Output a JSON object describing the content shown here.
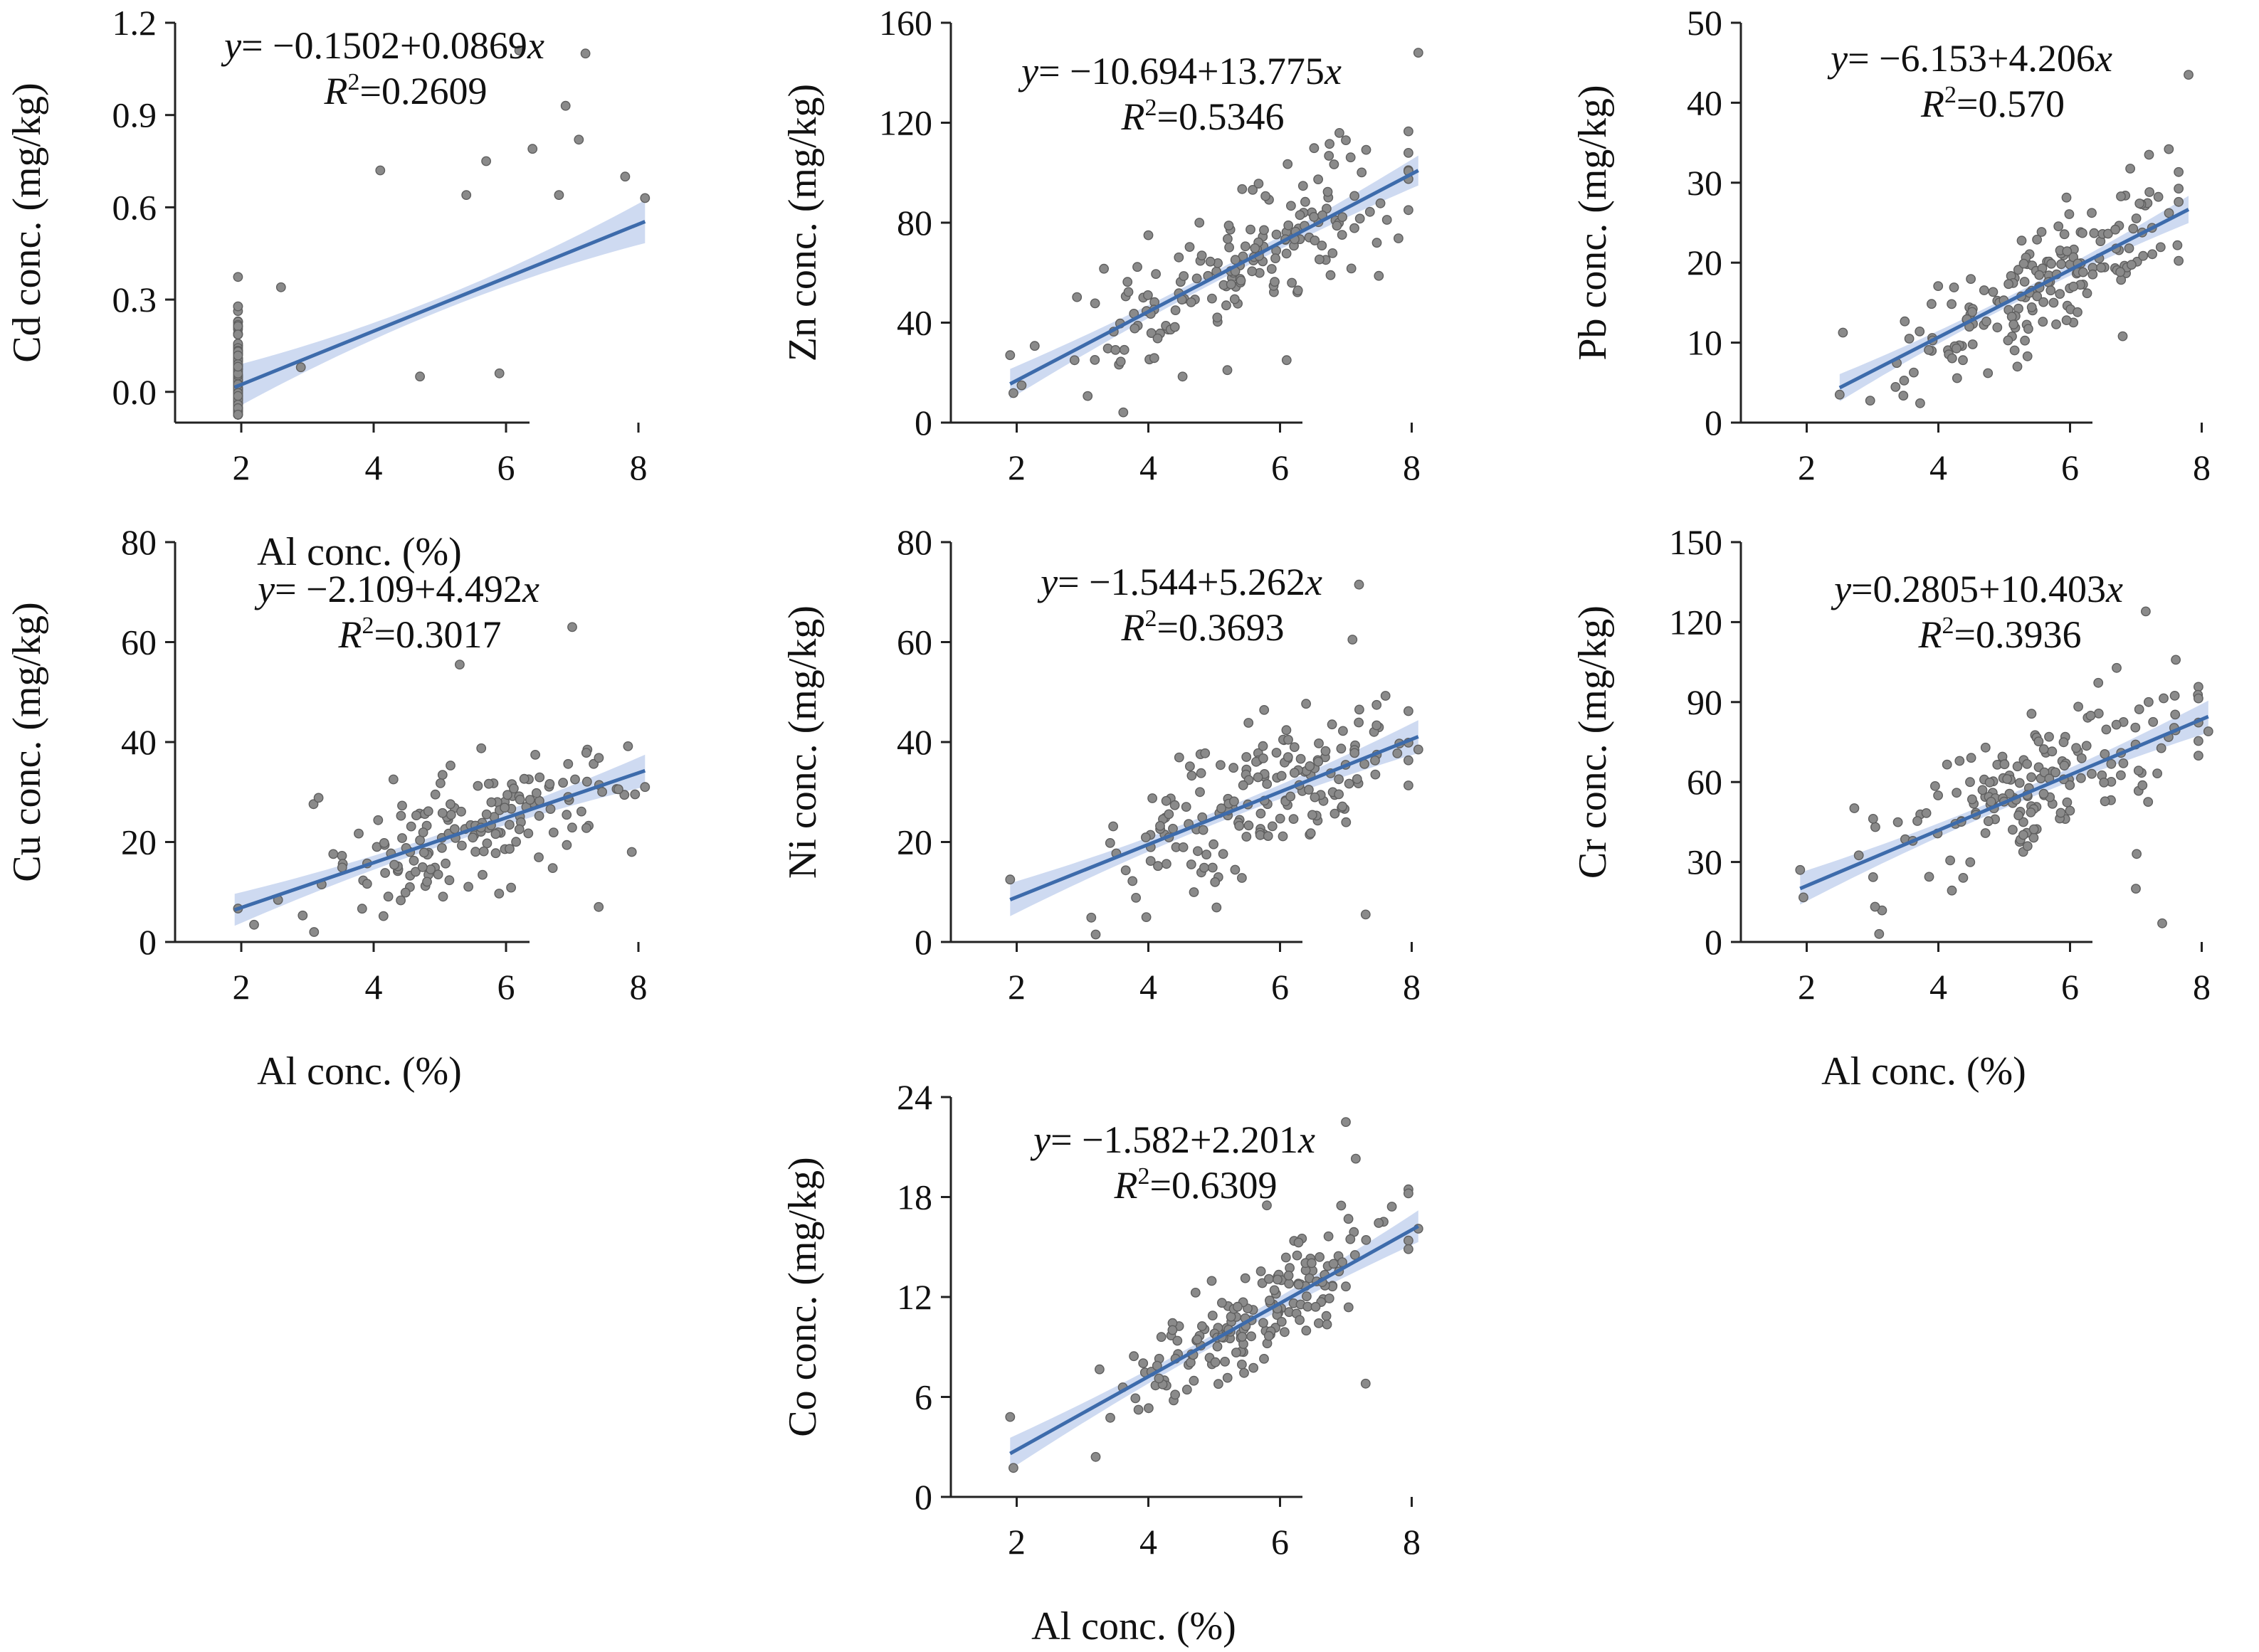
{
  "figure": {
    "background": "#ffffff",
    "point_color": "#8a8a8a",
    "point_edge_color": "#5f5f5f",
    "line_color": "#3d6bab",
    "band_color": "#c5d3ee"
  },
  "chart_data": [
    {
      "id": "cd",
      "type": "scatter",
      "xlabel": "Al conc. (%)",
      "show_xlabel": true,
      "ylabel": "Cd conc. (mg/kg)",
      "xlim": [
        1.0,
        9.0
      ],
      "ylim": [
        -0.1,
        1.2
      ],
      "xticks": [
        2,
        4,
        6,
        8
      ],
      "yticks": [
        0.0,
        0.3,
        0.6,
        0.9,
        1.2
      ],
      "ytick_labels": [
        "0.0",
        "0.3",
        "0.6",
        "0.9",
        "1.2"
      ],
      "equation": {
        "y_label": "y",
        "eq_sign": "=",
        "rhs": " −0.1502+0.0869",
        "x_var": "x",
        "r2_label": "R",
        "r2_power": "2",
        "r2_value": "=0.2609"
      },
      "fit": {
        "intercept": -0.1502,
        "slope": 0.0869,
        "x_range": [
          1.9,
          8.1
        ],
        "band_halfwidth_ends": 0.07,
        "band_halfwidth_mid": 0.022
      },
      "seed": 11,
      "n_points": 170,
      "center": 0.31,
      "spread": 0.31,
      "resid_sd": 0.1,
      "resid_skew": 0.1,
      "outliers": [
        [
          2.6,
          0.34
        ],
        [
          4.1,
          0.72
        ],
        [
          6.2,
          1.11
        ],
        [
          7.2,
          1.1
        ],
        [
          6.9,
          0.93
        ],
        [
          7.1,
          0.82
        ],
        [
          6.4,
          0.79
        ],
        [
          5.7,
          0.75
        ],
        [
          6.8,
          0.64
        ],
        [
          7.8,
          0.7
        ],
        [
          5.4,
          0.64
        ],
        [
          8.1,
          0.63
        ],
        [
          4.7,
          0.05
        ],
        [
          5.9,
          0.06
        ],
        [
          2.9,
          0.08
        ]
      ]
    },
    {
      "id": "zn",
      "type": "scatter",
      "xlabel": "Al conc. (%)",
      "show_xlabel": false,
      "ylabel": "Zn conc. (mg/kg)",
      "xlim": [
        1.0,
        9.0
      ],
      "ylim": [
        0,
        160
      ],
      "xticks": [
        2,
        4,
        6,
        8
      ],
      "yticks": [
        0,
        40,
        80,
        120,
        160
      ],
      "ytick_labels": [
        "0",
        "40",
        "80",
        "120",
        "160"
      ],
      "equation": {
        "y_label": "y",
        "eq_sign": "=",
        "rhs": " −10.694+13.775",
        "x_var": "x",
        "r2_label": "R",
        "r2_power": "2",
        "r2_value": "=0.5346"
      },
      "fit": {
        "intercept": -10.694,
        "slope": 13.775,
        "x_range": [
          1.9,
          8.1
        ],
        "band_halfwidth_ends": 6.0,
        "band_halfwidth_mid": 2.2
      },
      "seed": 22,
      "n_points": 175,
      "center": 5.5,
      "spread": 1.25,
      "resid_sd": 12.5,
      "resid_skew": 0.0,
      "outliers": [
        [
          8.1,
          148
        ],
        [
          1.9,
          27
        ],
        [
          7.0,
          113
        ],
        [
          4.0,
          75
        ],
        [
          5.2,
          21
        ],
        [
          6.1,
          25
        ]
      ]
    },
    {
      "id": "pb",
      "type": "scatter",
      "xlabel": "Al conc. (%)",
      "show_xlabel": false,
      "ylabel": "Pb  conc. (mg/kg)",
      "xlim": [
        1.0,
        9.0
      ],
      "ylim": [
        0,
        50
      ],
      "xticks": [
        2,
        4,
        6,
        8
      ],
      "yticks": [
        0,
        10,
        20,
        30,
        40,
        50
      ],
      "ytick_labels": [
        "0",
        "10",
        "20",
        "30",
        "40",
        "50"
      ],
      "equation": {
        "y_label": "y",
        "eq_sign": "=",
        "rhs": " −6.153+4.206",
        "x_var": "x",
        "r2_label": "R",
        "r2_power": "2",
        "r2_value": "=0.570"
      },
      "fit": {
        "intercept": -6.153,
        "slope": 4.206,
        "x_range": [
          2.5,
          7.8
        ],
        "band_halfwidth_ends": 1.7,
        "band_halfwidth_mid": 0.6
      },
      "seed": 33,
      "n_points": 175,
      "center": 5.6,
      "spread": 1.1,
      "resid_sd": 3.4,
      "resid_skew": 0.0,
      "outliers": [
        [
          7.8,
          43.5
        ],
        [
          2.5,
          3.5
        ],
        [
          7.5,
          34.2
        ],
        [
          7.2,
          33.5
        ],
        [
          6.8,
          10.8
        ],
        [
          5.2,
          7.0
        ]
      ]
    },
    {
      "id": "cu",
      "type": "scatter",
      "xlabel": "Al conc. (%)",
      "show_xlabel": true,
      "ylabel": "Cu conc. (mg/kg)",
      "xlim": [
        1.0,
        9.0
      ],
      "ylim": [
        0,
        80
      ],
      "xticks": [
        2,
        4,
        6,
        8
      ],
      "yticks": [
        0,
        20,
        40,
        60,
        80
      ],
      "ytick_labels": [
        "0",
        "20",
        "40",
        "60",
        "80"
      ],
      "equation": {
        "y_label": "y",
        "eq_sign": "=",
        "rhs": " −2.109+4.492",
        "x_var": "x",
        "r2_label": "R",
        "r2_power": "2",
        "r2_value": "=0.3017"
      },
      "fit": {
        "intercept": -2.109,
        "slope": 4.492,
        "x_range": [
          1.9,
          8.1
        ],
        "band_halfwidth_ends": 3.2,
        "band_halfwidth_mid": 1.2
      },
      "seed": 44,
      "n_points": 165,
      "center": 5.5,
      "spread": 1.3,
      "resid_sd": 6.5,
      "resid_skew": 0.0,
      "outliers": [
        [
          5.3,
          55.5
        ],
        [
          7.0,
          63
        ],
        [
          8.1,
          31
        ],
        [
          3.1,
          2
        ],
        [
          7.9,
          18
        ],
        [
          7.4,
          7
        ]
      ]
    },
    {
      "id": "ni",
      "type": "scatter",
      "xlabel": "Al conc. (%)",
      "show_xlabel": false,
      "ylabel": "Ni conc. (mg/kg)",
      "xlim": [
        1.0,
        9.0
      ],
      "ylim": [
        0,
        80
      ],
      "xticks": [
        2,
        4,
        6,
        8
      ],
      "yticks": [
        0,
        20,
        40,
        60,
        80
      ],
      "ytick_labels": [
        "0",
        "20",
        "40",
        "60",
        "80"
      ],
      "equation": {
        "y_label": "y",
        "eq_sign": "=",
        "rhs": " −1.544+5.262",
        "x_var": "x",
        "r2_label": "R",
        "r2_power": "2",
        "r2_value": "=0.3693"
      },
      "fit": {
        "intercept": -1.544,
        "slope": 5.262,
        "x_range": [
          1.9,
          8.1
        ],
        "band_halfwidth_ends": 3.3,
        "band_halfwidth_mid": 1.2
      },
      "seed": 55,
      "n_points": 175,
      "center": 5.6,
      "spread": 1.2,
      "resid_sd": 6.8,
      "resid_skew": 0.0,
      "outliers": [
        [
          7.2,
          71.5
        ],
        [
          7.1,
          60.5
        ],
        [
          7.3,
          5.5
        ],
        [
          3.2,
          1.5
        ],
        [
          1.9,
          12.5
        ],
        [
          8.1,
          38.5
        ]
      ]
    },
    {
      "id": "cr",
      "type": "scatter",
      "xlabel": "Al conc. (%)",
      "show_xlabel": true,
      "ylabel": "Cr  conc. (mg/kg)",
      "xlim": [
        1.0,
        9.0
      ],
      "ylim": [
        0,
        150
      ],
      "xticks": [
        2,
        4,
        6,
        8
      ],
      "yticks": [
        0,
        30,
        60,
        90,
        120,
        150
      ],
      "ytick_labels": [
        "0",
        "30",
        "60",
        "90",
        "120",
        "150"
      ],
      "equation": {
        "y_label": "y",
        "eq_sign": "=",
        "rhs": "0.2805+10.403",
        "x_var": "x",
        "r2_label": "R",
        "r2_power": "2",
        "r2_value": "=0.3936"
      },
      "fit": {
        "intercept": 0.2805,
        "slope": 10.403,
        "x_range": [
          1.9,
          8.1
        ],
        "band_halfwidth_ends": 6.0,
        "band_halfwidth_mid": 2.2
      },
      "seed": 66,
      "n_points": 175,
      "center": 5.6,
      "spread": 1.2,
      "resid_sd": 12.5,
      "resid_skew": 0.0,
      "outliers": [
        [
          7.15,
          124
        ],
        [
          3.1,
          3
        ],
        [
          7.4,
          7
        ],
        [
          1.9,
          27
        ],
        [
          8.1,
          79
        ],
        [
          7.0,
          20
        ]
      ]
    },
    {
      "id": "co",
      "type": "scatter",
      "xlabel": "Al conc. (%)",
      "show_xlabel": true,
      "ylabel": "Co conc. (mg/kg)",
      "xlim": [
        1.0,
        9.0
      ],
      "ylim": [
        0,
        24
      ],
      "xticks": [
        2,
        4,
        6,
        8
      ],
      "yticks": [
        0,
        6,
        12,
        18,
        24
      ],
      "ytick_labels": [
        "0",
        "6",
        "12",
        "18",
        "24"
      ],
      "equation": {
        "y_label": "y",
        "eq_sign": "=",
        "rhs": " −1.582+2.201",
        "x_var": "x",
        "r2_label": "R",
        "r2_power": "2",
        "r2_value": "=0.6309"
      },
      "fit": {
        "intercept": -1.582,
        "slope": 2.201,
        "x_range": [
          1.9,
          8.1
        ],
        "band_halfwidth_ends": 0.95,
        "band_halfwidth_mid": 0.35
      },
      "seed": 77,
      "n_points": 175,
      "center": 5.6,
      "spread": 1.2,
      "resid_sd": 1.55,
      "resid_skew": 0.0,
      "outliers": [
        [
          7.0,
          22.5
        ],
        [
          7.15,
          20.3
        ],
        [
          5.8,
          17.5
        ],
        [
          7.3,
          6.8
        ],
        [
          3.2,
          2.4
        ],
        [
          1.9,
          4.8
        ],
        [
          8.1,
          16.1
        ]
      ]
    }
  ]
}
